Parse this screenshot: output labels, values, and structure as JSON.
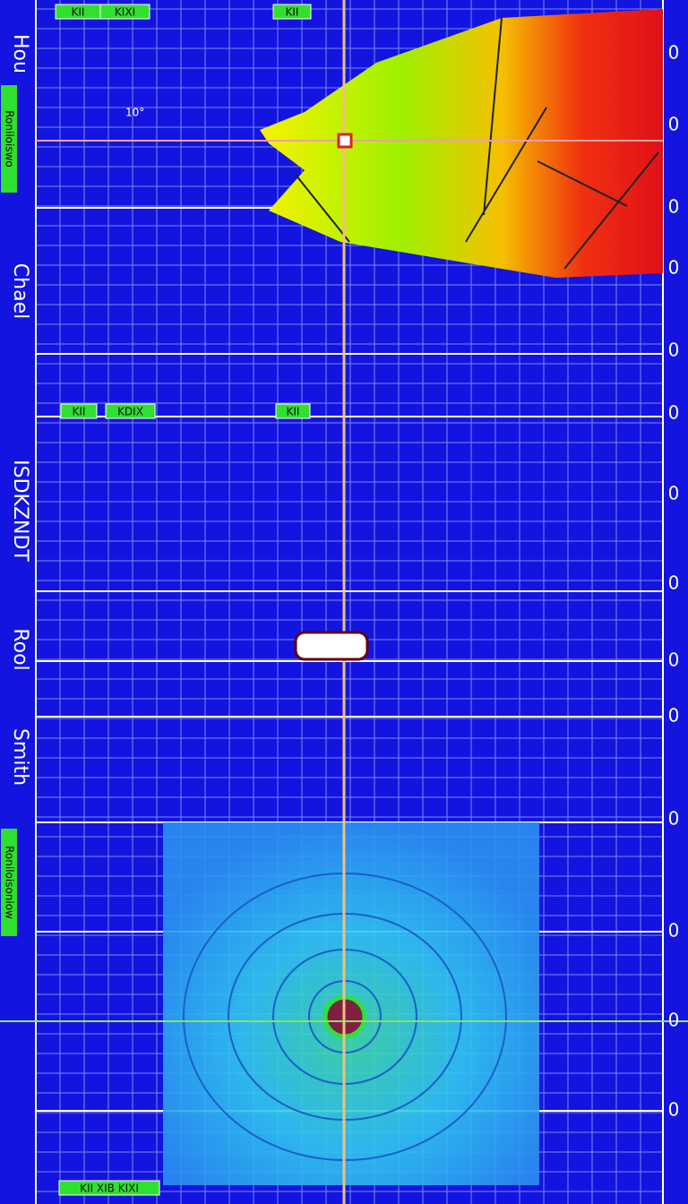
{
  "left_labels": [
    "Hou",
    "Chael",
    "ISDKZNDT",
    "Rool",
    "Smith"
  ],
  "side_tags": [
    "Roniloiswo",
    "Roniloisoniow"
  ],
  "top_tags": [
    "KII",
    "KIXI",
    "KII"
  ],
  "mid_tags": [
    "KII",
    "KDIX",
    "KII"
  ],
  "bottom_tag": "KII XIB KIXI",
  "annotation": "10°",
  "right_labels": [
    "0",
    "0",
    "0",
    "0",
    "0",
    "0",
    "0",
    "0",
    "0",
    "0",
    "0",
    "0",
    "0",
    "0"
  ]
}
